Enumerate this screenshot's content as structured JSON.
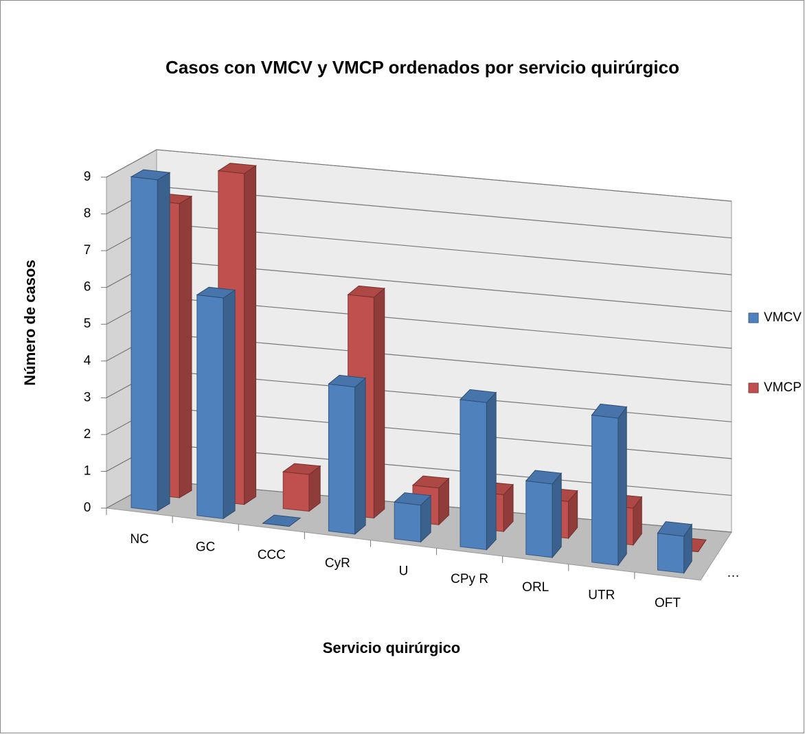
{
  "chart_data": {
    "type": "bar3d",
    "title": "Casos con VMCV y VMCP ordenados por servicio quirúrgico",
    "x_label": "Servicio quirúrgico",
    "y_label": "Número de casos",
    "depth_label": "…",
    "categories": [
      "NC",
      "GC",
      "CCC",
      "CyR",
      "U",
      "CPy R",
      "ORL",
      "UTR",
      "OFT"
    ],
    "series": [
      {
        "name": "VMCV",
        "color": "#4f81bd",
        "values": [
          9,
          6,
          0,
          4,
          1,
          4,
          2,
          4,
          1
        ]
      },
      {
        "name": "VMCP",
        "color": "#c0504d",
        "values": [
          8,
          9,
          1,
          6,
          1,
          1,
          1,
          1,
          0
        ]
      }
    ],
    "ylim": [
      0,
      9
    ],
    "yticks": [
      0,
      1,
      2,
      3,
      4,
      5,
      6,
      7,
      8,
      9
    ],
    "grid": true,
    "legend": "right"
  }
}
